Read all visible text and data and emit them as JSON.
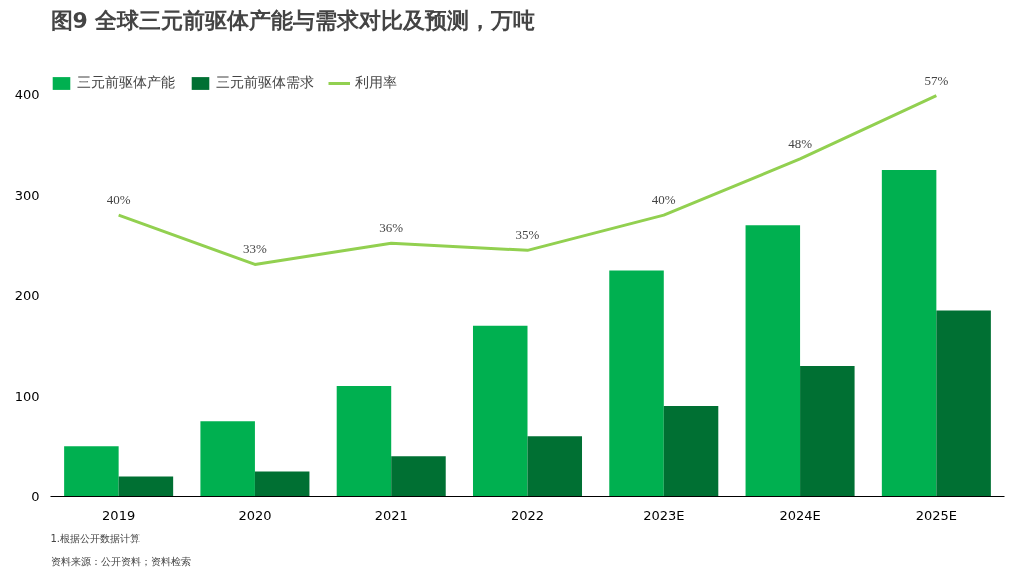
{
  "chart_data": {
    "type": "bar",
    "title": "图9 全球三元前驱体产能与需求对比及预测，万吨",
    "categories": [
      "2019",
      "2020",
      "2021",
      "2022",
      "2023E",
      "2024E",
      "2025E"
    ],
    "series": [
      {
        "name": "三元前驱体产能",
        "color": "#00b050",
        "values": [
          50,
          75,
          110,
          170,
          225,
          270,
          325
        ]
      },
      {
        "name": "三元前驱体需求",
        "color": "#007033",
        "values": [
          20,
          25,
          40,
          60,
          90,
          130,
          185
        ]
      },
      {
        "name": "利用率",
        "type": "line",
        "axis": "y2",
        "color": "#92d050",
        "values": [
          40,
          33,
          36,
          35,
          40,
          48,
          57
        ],
        "value_labels": [
          "40%",
          "33%",
          "36%",
          "35%",
          "40%",
          "48%",
          "57%"
        ]
      }
    ],
    "ylim": [
      0,
      420
    ],
    "yticks": [
      0,
      100,
      200,
      300,
      400
    ],
    "y2lim": [
      0,
      60
    ],
    "legend": "top left",
    "grid": false,
    "annotations": [
      "1.根据公开数据计算",
      "资料来源：公开资料；资料检索"
    ]
  }
}
